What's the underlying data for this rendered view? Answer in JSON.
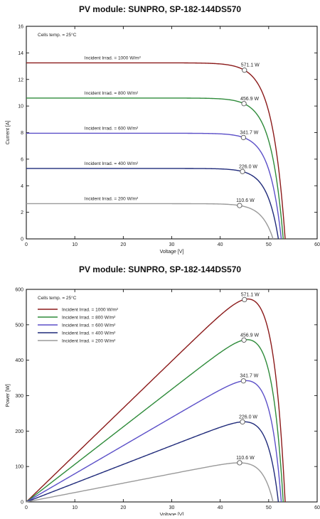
{
  "chart_data": [
    {
      "type": "line",
      "title": "PV module:  SUNPRO,  SP-182-144DS570",
      "xlabel": "Voltage [V]",
      "ylabel": "Current [A]",
      "xlim": [
        0,
        60
      ],
      "ylim": [
        0,
        16
      ],
      "xticks": [
        0,
        10,
        20,
        30,
        40,
        50,
        60
      ],
      "yticks": [
        0,
        2,
        4,
        6,
        8,
        10,
        12,
        14,
        16
      ],
      "tick_labels_x": [
        "0",
        "10",
        "20",
        "30",
        "40",
        "50",
        "60"
      ],
      "tick_labels_y": [
        "0",
        "2",
        "4",
        "6",
        "8",
        "10",
        "12",
        "14",
        "16"
      ],
      "grid": false,
      "note": "Cells temp. = 25°C",
      "series": [
        {
          "name": "Incident Irrad. = 1000 W/m²",
          "color": "#8b1a1a",
          "isc": 13.25,
          "voc": 53.4,
          "mpp": [
            45.0,
            12.7
          ],
          "mpp_label": "571.1 W"
        },
        {
          "name": "Incident Irrad. = 800 W/m²",
          "color": "#2e8b3a",
          "isc": 10.6,
          "voc": 53.0,
          "mpp": [
            44.9,
            10.18
          ],
          "mpp_label": "456.9 W"
        },
        {
          "name": "Incident Irrad. = 600 W/m²",
          "color": "#5b4fc8",
          "isc": 7.95,
          "voc": 52.6,
          "mpp": [
            44.8,
            7.63
          ],
          "mpp_label": "341.7 W"
        },
        {
          "name": "Incident Irrad. = 400 W/m²",
          "color": "#1f2a7a",
          "isc": 5.3,
          "voc": 52.0,
          "mpp": [
            44.6,
            5.07
          ],
          "mpp_label": "226.0 W"
        },
        {
          "name": "Incident Irrad. = 200 W/m²",
          "color": "#9a9a9a",
          "isc": 2.65,
          "voc": 50.9,
          "mpp": [
            44.0,
            2.51
          ],
          "mpp_label": "110.6 W"
        }
      ]
    },
    {
      "type": "line",
      "title": "PV module:  SUNPRO,  SP-182-144DS570",
      "xlabel": "Voltage [V]",
      "ylabel": "Power [W]",
      "xlim": [
        0,
        60
      ],
      "ylim": [
        0,
        600
      ],
      "xticks": [
        0,
        10,
        20,
        30,
        40,
        50,
        60
      ],
      "yticks": [
        0,
        100,
        200,
        300,
        400,
        500,
        600
      ],
      "tick_labels_x": [
        "0",
        "10",
        "20",
        "30",
        "40",
        "50",
        "60"
      ],
      "tick_labels_y": [
        "0",
        "100",
        "200",
        "300",
        "400",
        "500",
        "600"
      ],
      "grid": false,
      "legend": "top-left",
      "note": "Cells temp. = 25°C",
      "series": [
        {
          "name": "Incident Irrad. = 1000 W/m²",
          "color": "#8b1a1a",
          "mpp": [
            45.0,
            571.1
          ],
          "mpp_label": "571.1 W"
        },
        {
          "name": "Incident Irrad. = 800 W/m²",
          "color": "#2e8b3a",
          "mpp": [
            44.9,
            456.9
          ],
          "mpp_label": "456.9 W"
        },
        {
          "name": "Incident Irrad. = 600 W/m²",
          "color": "#5b4fc8",
          "mpp": [
            44.8,
            341.7
          ],
          "mpp_label": "341.7 W"
        },
        {
          "name": "Incident Irrad. = 400 W/m²",
          "color": "#1f2a7a",
          "mpp": [
            44.6,
            226.0
          ],
          "mpp_label": "226.0 W"
        },
        {
          "name": "Incident Irrad. = 200 W/m²",
          "color": "#9a9a9a",
          "mpp": [
            44.0,
            110.6
          ],
          "mpp_label": "110.6 W"
        }
      ]
    }
  ]
}
